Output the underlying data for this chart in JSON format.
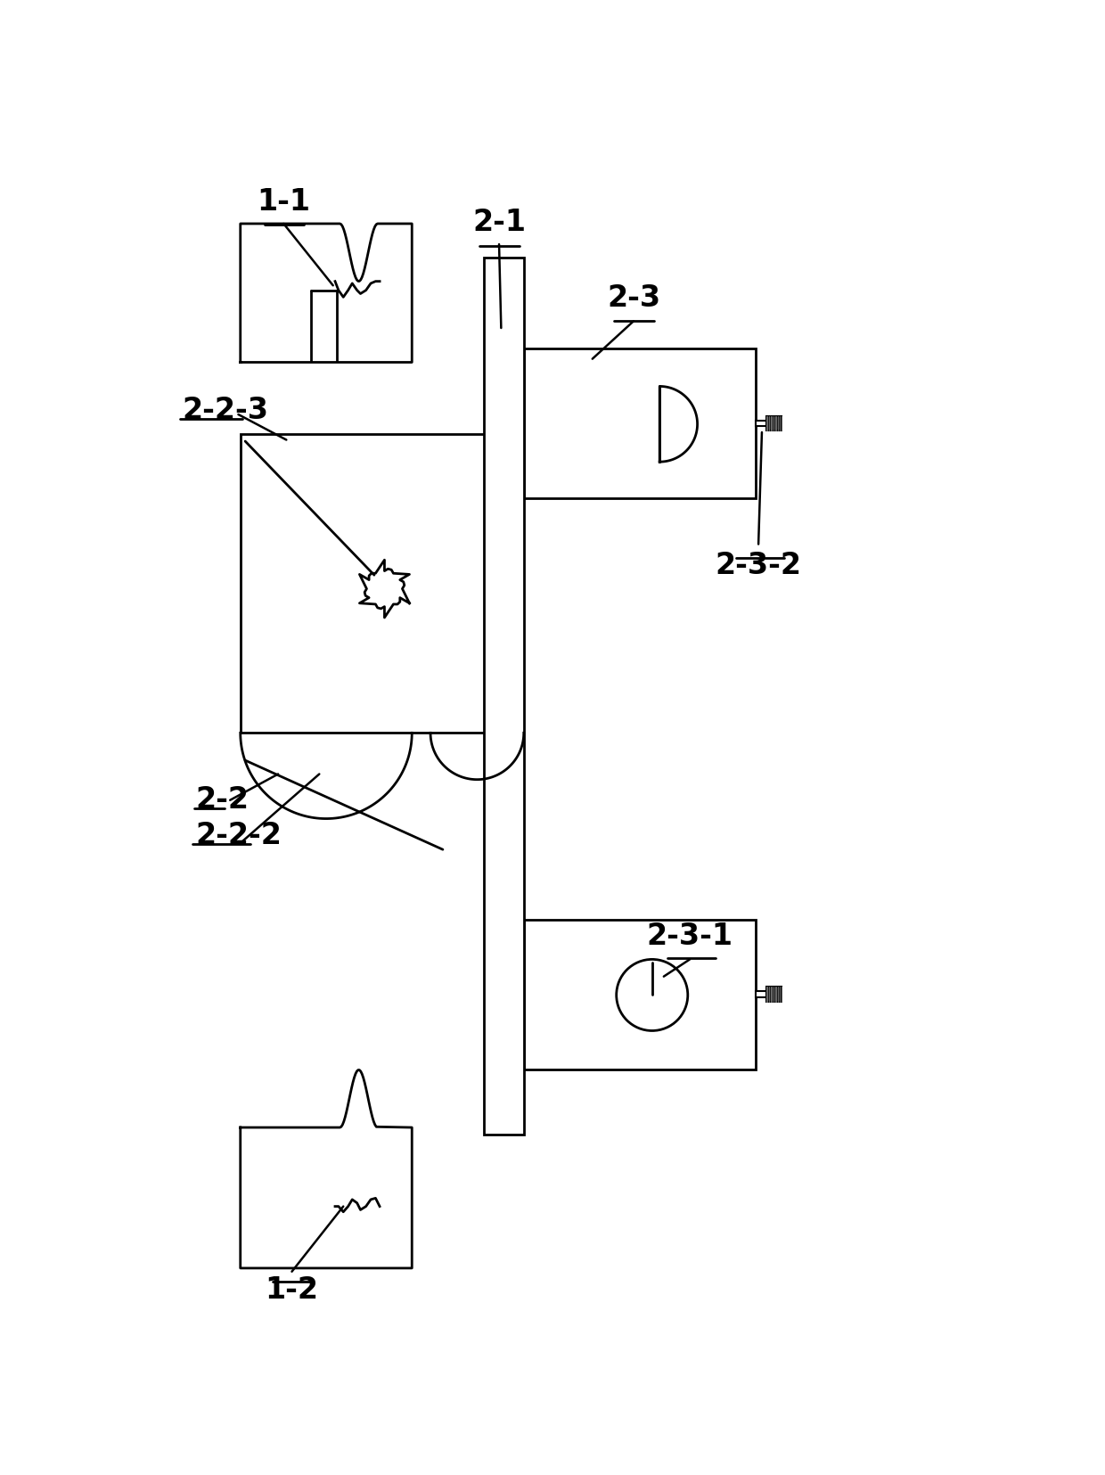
{
  "bg": "#ffffff",
  "lc": "#000000",
  "lw": 2.0,
  "fig_w": 12.4,
  "fig_h": 16.55,
  "dpi": 100
}
